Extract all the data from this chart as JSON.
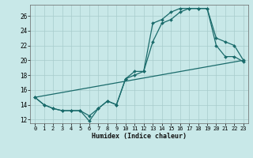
{
  "xlabel": "Humidex (Indice chaleur)",
  "xlim": [
    -0.5,
    23.5
  ],
  "ylim": [
    11.5,
    27.5
  ],
  "xticks": [
    0,
    1,
    2,
    3,
    4,
    5,
    6,
    7,
    8,
    9,
    10,
    11,
    12,
    13,
    14,
    15,
    16,
    17,
    18,
    19,
    20,
    21,
    22,
    23
  ],
  "yticks": [
    12,
    14,
    16,
    18,
    20,
    22,
    24,
    26
  ],
  "bg_color": "#c8e8e8",
  "grid_color": "#a8cccc",
  "line_color": "#1a6b6b",
  "line1_x": [
    0,
    1,
    2,
    3,
    4,
    5,
    6,
    7,
    8,
    9,
    10,
    11,
    12,
    13,
    14,
    15,
    16,
    17,
    18,
    19,
    20,
    21,
    22,
    23
  ],
  "line1_y": [
    15,
    14,
    13.5,
    13.2,
    13.2,
    13.2,
    11.8,
    13.5,
    14.5,
    14,
    17.5,
    18.5,
    18.5,
    22.5,
    25,
    25.5,
    26.5,
    27,
    27,
    27,
    22,
    20.5,
    20.5,
    19.8
  ],
  "line2_x": [
    0,
    1,
    2,
    3,
    4,
    5,
    6,
    7,
    8,
    9,
    10,
    11,
    12,
    13,
    14,
    15,
    16,
    17,
    18,
    19,
    20,
    21,
    22,
    23
  ],
  "line2_y": [
    15,
    14,
    13.5,
    13.2,
    13.2,
    13.2,
    12.5,
    13.5,
    14.5,
    14,
    17.5,
    18,
    18.5,
    25,
    25.5,
    26.5,
    27,
    27,
    27,
    27,
    23,
    22.5,
    22,
    20
  ],
  "line3_x": [
    0,
    23
  ],
  "line3_y": [
    15,
    20
  ]
}
